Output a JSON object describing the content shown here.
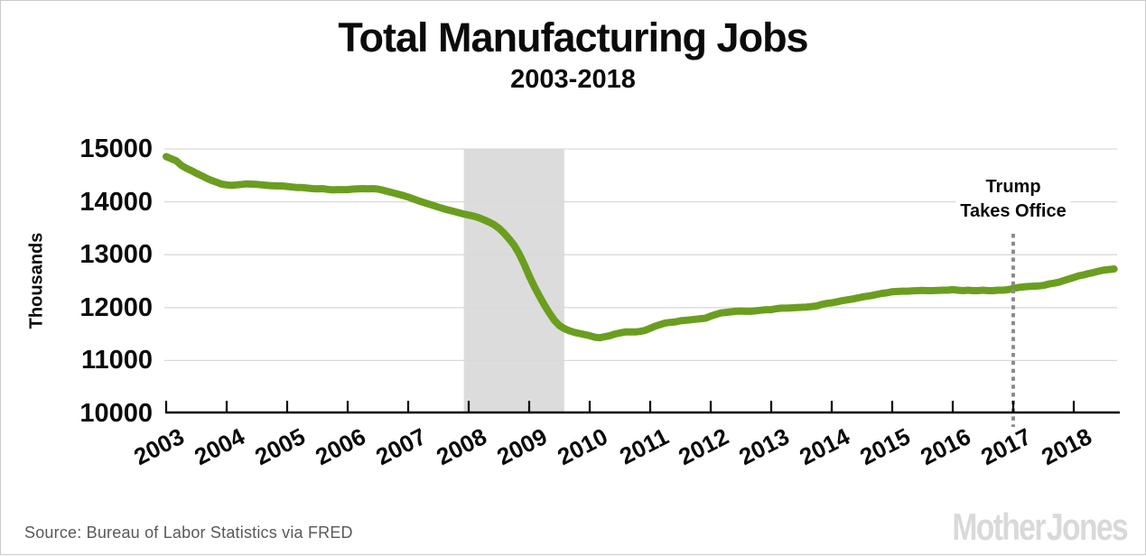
{
  "header": {
    "title": "Total Manufacturing Jobs",
    "subtitle": "2003-2018"
  },
  "annotation": {
    "line1": "Trump",
    "line2": "Takes Office"
  },
  "footer": {
    "source": "Source: Bureau of Labor Statistics via FRED",
    "logo": "Mother Jones"
  },
  "colors": {
    "line": "#6b9e1f",
    "recession_band": "#dcdcdc",
    "gridline": "#d9d9d9",
    "axis": "#000000",
    "event_line": "#8c8c8c",
    "text": "#0b0b0b",
    "source_text": "#595959",
    "logo_text": "#d9d9d9"
  },
  "chart_data": {
    "type": "line",
    "title": "Total Manufacturing Jobs",
    "subtitle": "2003-2018",
    "xlabel": "",
    "ylabel": "Thousands",
    "ylim": [
      10000,
      15000
    ],
    "y_ticks": [
      10000,
      11000,
      12000,
      13000,
      14000,
      15000
    ],
    "x_ticks": [
      2003,
      2004,
      2005,
      2006,
      2007,
      2008,
      2009,
      2010,
      2011,
      2012,
      2013,
      2014,
      2015,
      2016,
      2017,
      2018
    ],
    "xlim": [
      2003,
      2018.75
    ],
    "frequency": "monthly",
    "x_start": "2003-01",
    "x_end": "2018-09",
    "grid": "horizontal",
    "legend": "none",
    "recession_band": {
      "start": 2007.92,
      "end": 2009.58
    },
    "event_line": {
      "x": 2017.0,
      "label": "Trump Takes Office",
      "style": "dotted"
    },
    "series": [
      {
        "name": "Total manufacturing jobs (thousands)",
        "values": [
          14855,
          14815,
          14775,
          14690,
          14635,
          14590,
          14540,
          14495,
          14445,
          14405,
          14370,
          14335,
          14320,
          14310,
          14320,
          14330,
          14340,
          14335,
          14330,
          14320,
          14310,
          14305,
          14300,
          14300,
          14290,
          14280,
          14270,
          14270,
          14260,
          14250,
          14245,
          14250,
          14235,
          14225,
          14230,
          14230,
          14230,
          14240,
          14245,
          14250,
          14245,
          14250,
          14240,
          14220,
          14195,
          14170,
          14145,
          14120,
          14090,
          14055,
          14020,
          13990,
          13960,
          13930,
          13900,
          13870,
          13845,
          13820,
          13795,
          13770,
          13750,
          13730,
          13700,
          13660,
          13620,
          13570,
          13500,
          13410,
          13300,
          13180,
          13020,
          12820,
          12600,
          12400,
          12220,
          12050,
          11900,
          11760,
          11660,
          11600,
          11560,
          11530,
          11510,
          11490,
          11470,
          11440,
          11430,
          11450,
          11470,
          11500,
          11520,
          11540,
          11540,
          11540,
          11550,
          11570,
          11610,
          11650,
          11680,
          11710,
          11720,
          11730,
          11750,
          11760,
          11770,
          11780,
          11790,
          11800,
          11840,
          11870,
          11900,
          11910,
          11920,
          11930,
          11935,
          11930,
          11930,
          11940,
          11950,
          11960,
          11960,
          11980,
          11990,
          11990,
          11995,
          12000,
          12005,
          12010,
          12020,
          12030,
          12060,
          12080,
          12090,
          12110,
          12130,
          12145,
          12160,
          12180,
          12200,
          12215,
          12230,
          12250,
          12270,
          12280,
          12300,
          12305,
          12310,
          12310,
          12315,
          12320,
          12325,
          12320,
          12320,
          12325,
          12330,
          12330,
          12340,
          12330,
          12320,
          12330,
          12320,
          12320,
          12330,
          12320,
          12320,
          12330,
          12330,
          12340,
          12360,
          12380,
          12390,
          12400,
          12405,
          12410,
          12420,
          12445,
          12460,
          12480,
          12510,
          12540,
          12570,
          12600,
          12620,
          12645,
          12665,
          12690,
          12710,
          12720,
          12730
        ]
      }
    ]
  }
}
